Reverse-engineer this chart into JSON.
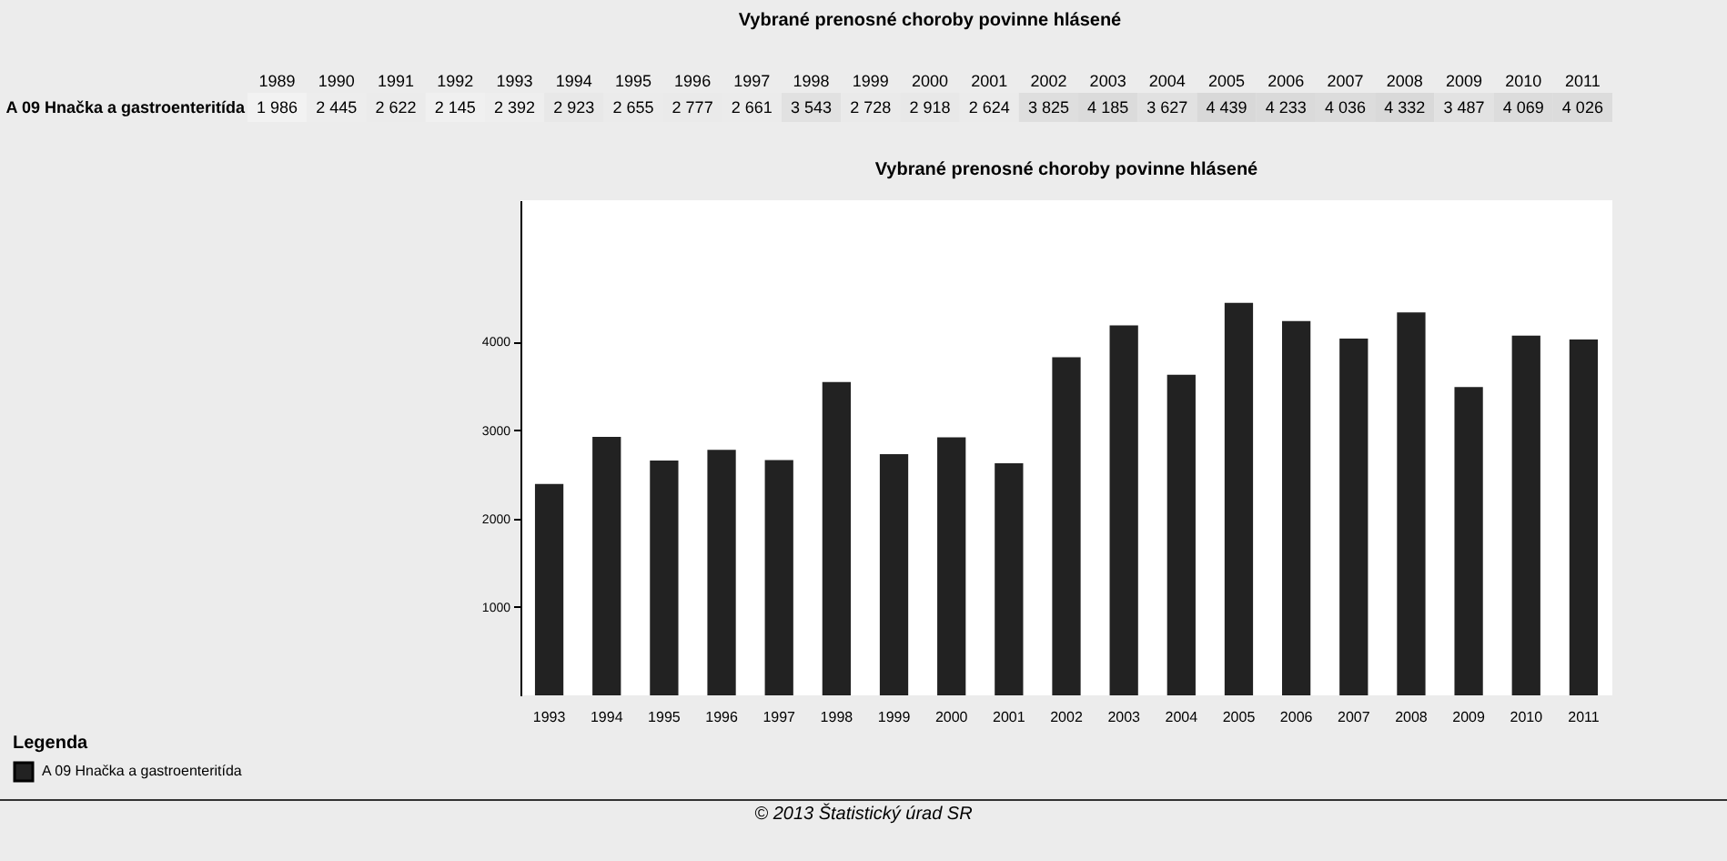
{
  "chart_data": [
    {
      "type": "heatmap",
      "title": "Vybrané prenosné choroby povinne hlásené",
      "categories": [
        "1989",
        "1990",
        "1991",
        "1992",
        "1993",
        "1994",
        "1995",
        "1996",
        "1997",
        "1998",
        "1999",
        "2000",
        "2001",
        "2002",
        "2003",
        "2004",
        "2005",
        "2006",
        "2007",
        "2008",
        "2009",
        "2010",
        "2011"
      ],
      "y_categories": [
        "A 09 Hnačka a gastroenteritída"
      ],
      "cells": [
        [
          1986,
          2445,
          2622,
          2145,
          2392,
          2923,
          2655,
          2777,
          2661,
          3543,
          2728,
          2918,
          2624,
          3825,
          4185,
          3627,
          4439,
          4233,
          4036,
          4332,
          3487,
          4069,
          4026
        ]
      ],
      "cell_labels": [
        [
          "1 986",
          "2 445",
          "2 622",
          "2 145",
          "2 392",
          "2 923",
          "2 655",
          "2 777",
          "2 661",
          "3 543",
          "2 728",
          "2 918",
          "2 624",
          "3 825",
          "4 185",
          "3 627",
          "4 439",
          "4 233",
          "4 036",
          "4 332",
          "3 487",
          "4 069",
          "4 026"
        ]
      ]
    },
    {
      "type": "bar",
      "title": "Vybrané prenosné choroby povinne hlásené",
      "categories": [
        "1993",
        "1994",
        "1995",
        "1996",
        "1997",
        "1998",
        "1999",
        "2000",
        "2001",
        "2002",
        "2003",
        "2004",
        "2005",
        "2006",
        "2007",
        "2008",
        "2009",
        "2010",
        "2011"
      ],
      "series": [
        {
          "name": "A 09 Hnačka a gastroenteritída",
          "color": "#222222",
          "values": [
            2392,
            2923,
            2655,
            2777,
            2661,
            3543,
            2728,
            2918,
            2624,
            3825,
            4185,
            3627,
            4439,
            4233,
            4036,
            4332,
            3487,
            4069,
            4026
          ]
        }
      ],
      "ylim": [
        0,
        5600
      ],
      "yticks": [
        1000,
        2000,
        3000,
        4000
      ],
      "legend": "bottom left",
      "legend_title": "Legenda",
      "annotations": [
        "© 2013 Štatistický úrad SR"
      ]
    }
  ]
}
